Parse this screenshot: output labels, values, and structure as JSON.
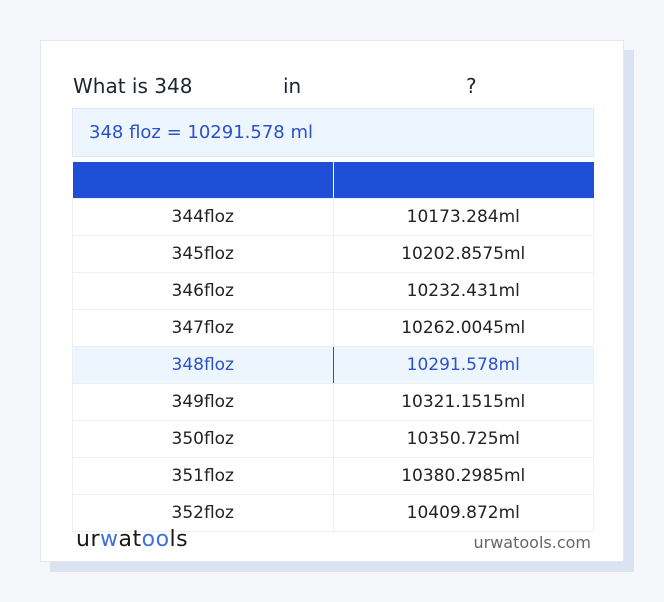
{
  "title": {
    "prefix": "What is 348",
    "middle": "in",
    "suffix": "?"
  },
  "result": "348 floz = 10291.578 ml",
  "table": {
    "headers": [
      "",
      ""
    ],
    "rows": [
      [
        "344floz",
        "10173.284ml"
      ],
      [
        "345floz",
        "10202.8575ml"
      ],
      [
        "346floz",
        "10232.431ml"
      ],
      [
        "347floz",
        "10262.0045ml"
      ],
      [
        "348floz",
        "10291.578ml"
      ],
      [
        "349floz",
        "10321.1515ml"
      ],
      [
        "350floz",
        "10350.725ml"
      ],
      [
        "351floz",
        "10380.2985ml"
      ],
      [
        "352floz",
        "10409.872ml"
      ]
    ],
    "highlighted_row": 4
  },
  "footer": {
    "logo": "urwatools",
    "site": "urwatools.com"
  },
  "colors": {
    "accent": "#1f4fd6",
    "highlight_bg": "#edf5ff",
    "highlight_text": "#2a52c9"
  }
}
